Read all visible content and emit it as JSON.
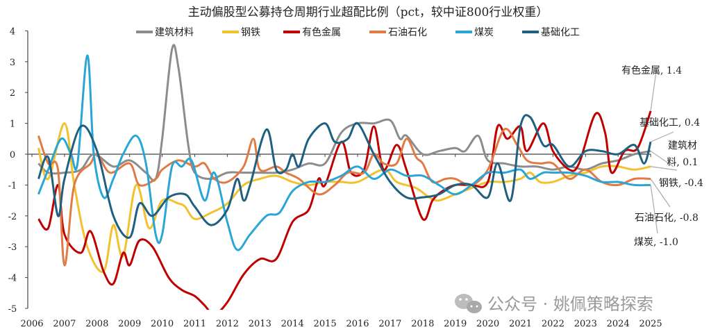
{
  "chart_data": {
    "type": "line",
    "title": "主动偏股型公募持仓周期行业超配比例（pct，较中证800行业权重）",
    "xlabel": "",
    "ylabel": "",
    "xlim": [
      2006,
      2025.2
    ],
    "ylim": [
      -5,
      4
    ],
    "yticks": [
      "4",
      "3",
      "2",
      "1",
      "0",
      "-1",
      "-2",
      "-3",
      "-4",
      "-5"
    ],
    "ytick_values": [
      4,
      3,
      2,
      1,
      0,
      -1,
      -2,
      -3,
      -4,
      -5
    ],
    "xticks": [
      "2006",
      "2007",
      "2008",
      "2009",
      "2010",
      "2011",
      "2012",
      "2013",
      "2014",
      "2015",
      "2016",
      "2017",
      "2018",
      "2019",
      "2020",
      "2021",
      "2022",
      "2023",
      "2024",
      "2025"
    ],
    "grid": false,
    "legend_position": "top",
    "series": [
      {
        "name": "建筑材料",
        "color": "#8c8c8c",
        "label": "建筑材料, 0.1",
        "x": [
          2006.2,
          2006.5,
          2007,
          2007.5,
          2007.9,
          2008.5,
          2009,
          2009.5,
          2009.8,
          2010,
          2010.3,
          2010.5,
          2010.8,
          2011,
          2011.5,
          2012,
          2012.5,
          2013,
          2013.5,
          2014,
          2014.5,
          2015,
          2015.5,
          2016,
          2016.5,
          2017,
          2017.3,
          2017.5,
          2018,
          2018.5,
          2019,
          2019.3,
          2019.7,
          2020,
          2020.5,
          2021,
          2021.5,
          2022,
          2022.5,
          2023,
          2023.5,
          2024,
          2024.5,
          2025
        ],
        "y": [
          -0.3,
          -0.6,
          -0.6,
          -0.5,
          0,
          -0.4,
          -0.2,
          -0.6,
          -0.8,
          0.5,
          3.4,
          2.8,
          0.3,
          -0.6,
          -0.8,
          -0.6,
          -0.6,
          -0.6,
          -0.6,
          -0.5,
          -0.3,
          -0.3,
          0.7,
          1.0,
          1.0,
          1.1,
          0.5,
          0.6,
          0.0,
          0.1,
          0.2,
          0.1,
          0.6,
          -0.2,
          -0.3,
          -0.4,
          -0.4,
          -0.5,
          -0.4,
          -0.5,
          -0.3,
          -0.2,
          0.0,
          0.1
        ]
      },
      {
        "name": "钢铁",
        "color": "#f2c12e",
        "label": "钢铁, -0.4",
        "x": [
          2006.2,
          2006.5,
          2007,
          2007.3,
          2007.7,
          2008.2,
          2008.5,
          2008.8,
          2009.2,
          2009.6,
          2010,
          2010.5,
          2010.7,
          2011,
          2011.5,
          2012,
          2012.5,
          2013,
          2013.5,
          2014,
          2014.5,
          2015,
          2015.5,
          2016,
          2016.8,
          2017.2,
          2017.8,
          2018.2,
          2018.5,
          2019,
          2019.5,
          2020,
          2020.5,
          2021,
          2021.3,
          2021.6,
          2022,
          2022.5,
          2023,
          2023.5,
          2024,
          2024.5,
          2025
        ],
        "y": [
          0.2,
          -0.8,
          1.0,
          -1.0,
          -3.0,
          -3.8,
          -2.3,
          -3.3,
          -1.0,
          -2.4,
          -1.5,
          -1.6,
          -1.7,
          -2.1,
          -1.9,
          -1.6,
          -1.0,
          -0.8,
          -0.7,
          -0.9,
          -1.0,
          -0.9,
          -0.9,
          -0.9,
          -0.5,
          -0.9,
          -1.1,
          -1.4,
          -1.5,
          -1.3,
          -1.1,
          -0.9,
          -0.9,
          -0.8,
          -0.6,
          -0.9,
          -0.9,
          -0.7,
          -0.6,
          -0.4,
          -0.4,
          -0.5,
          -0.4
        ]
      },
      {
        "name": "有色金属",
        "color": "#c00000",
        "label": "有色金属, 1.4",
        "x": [
          2006.2,
          2006.5,
          2006.8,
          2007,
          2007.5,
          2007.8,
          2008.2,
          2008.5,
          2008.8,
          2009,
          2009.3,
          2009.7,
          2010.2,
          2010.6,
          2011,
          2011.3,
          2011.6,
          2012,
          2012.5,
          2013,
          2013.5,
          2014,
          2014.5,
          2014.8,
          2015,
          2015.5,
          2015.8,
          2016.2,
          2016.5,
          2016.8,
          2017.2,
          2017.5,
          2018,
          2018.3,
          2018.6,
          2019,
          2019.5,
          2020,
          2020.3,
          2020.6,
          2021,
          2021.2,
          2021.7,
          2022,
          2022.5,
          2022.8,
          2023.3,
          2023.6,
          2023.8,
          2024.2,
          2024.6,
          2025
        ],
        "y": [
          -2.1,
          -2.4,
          -1.0,
          -2.6,
          -3.2,
          -2.5,
          -3.8,
          -4.2,
          -3.2,
          -3.6,
          -2.8,
          -3.0,
          -4.0,
          -4.4,
          -4.6,
          -4.9,
          -5.2,
          -4.8,
          -3.9,
          -3.4,
          -3.4,
          -2.2,
          -1.8,
          -0.8,
          -1.0,
          0.4,
          -0.6,
          -0.5,
          0.9,
          -0.5,
          0.3,
          -0.5,
          -2.1,
          -1.5,
          -1.2,
          -1.0,
          -1.0,
          -0.9,
          0.9,
          0.5,
          0.9,
          0.1,
          1.0,
          0.1,
          -0.5,
          -0.3,
          1.3,
          0.7,
          -0.6,
          0.1,
          0.2,
          1.4
        ]
      },
      {
        "name": "石油石化",
        "color": "#e07b45",
        "label": "石油石化, -0.8",
        "x": [
          2006.2,
          2006.5,
          2006.8,
          2007,
          2007.3,
          2007.8,
          2008,
          2008.4,
          2009,
          2009.3,
          2009.8,
          2010,
          2010.5,
          2011,
          2011.3,
          2011.6,
          2012,
          2012.5,
          2012.8,
          2013,
          2013.5,
          2013.8,
          2014.2,
          2014.8,
          2015.3,
          2015.7,
          2016.2,
          2016.5,
          2016.8,
          2017.2,
          2017.5,
          2017.8,
          2018,
          2018.3,
          2018.7,
          2019,
          2019.5,
          2020,
          2020.5,
          2020.9,
          2021.2,
          2021.6,
          2022,
          2022.5,
          2023,
          2023.5,
          2024,
          2024.5,
          2025
        ],
        "y": [
          0.6,
          -0.3,
          -0.5,
          -3.6,
          -1.0,
          -0.3,
          0.0,
          -0.6,
          -0.3,
          -1.0,
          -0.8,
          -0.5,
          -0.2,
          -0.4,
          -0.3,
          -0.8,
          -0.9,
          -0.4,
          0.5,
          -0.5,
          -0.4,
          -0.6,
          -0.8,
          -1.3,
          -1.0,
          -0.6,
          -0.6,
          0.0,
          -0.3,
          -0.3,
          0.5,
          -0.1,
          -0.3,
          -0.9,
          -0.8,
          -0.8,
          -1.0,
          -0.5,
          0.8,
          0.3,
          -0.2,
          -0.3,
          -0.3,
          -0.8,
          -0.5,
          -0.9,
          -1.0,
          -0.8,
          -0.8
        ]
      },
      {
        "name": "煤炭",
        "color": "#2aa6d6",
        "label": "煤炭, -1.0",
        "x": [
          2006.2,
          2006.5,
          2006.9,
          2007.2,
          2007.4,
          2007.7,
          2007.9,
          2008.2,
          2008.5,
          2008.8,
          2009.2,
          2009.5,
          2009.8,
          2010,
          2010.3,
          2010.6,
          2010.9,
          2011.3,
          2011.6,
          2012,
          2012.3,
          2012.7,
          2013.2,
          2013.6,
          2014,
          2014.5,
          2015,
          2015.5,
          2016,
          2016.5,
          2017,
          2017.5,
          2018,
          2018.5,
          2019,
          2019.5,
          2020,
          2020.5,
          2021,
          2021.3,
          2021.7,
          2022,
          2022.5,
          2023,
          2023.5,
          2024,
          2024.5,
          2025
        ],
        "y": [
          -1.3,
          -0.5,
          0.5,
          0.0,
          -0.3,
          3.2,
          0.0,
          -1.4,
          -0.8,
          0.0,
          0.6,
          -0.3,
          -2.6,
          -2.6,
          -0.4,
          -0.4,
          -0.2,
          -1.5,
          -0.6,
          -2.2,
          -3.1,
          -2.6,
          -2.0,
          -1.9,
          -1.2,
          -0.9,
          -0.9,
          -0.7,
          -0.4,
          -0.8,
          -0.5,
          -0.7,
          -0.7,
          -1.0,
          -1.3,
          -1.0,
          -0.6,
          -0.6,
          -0.5,
          -0.8,
          -0.6,
          -0.6,
          -0.6,
          -0.7,
          -0.9,
          -0.9,
          -1.0,
          -1.0
        ]
      },
      {
        "name": "基础化工",
        "color": "#1f5f7f",
        "label": "基础化工, 0.4",
        "x": [
          2006.2,
          2006.5,
          2006.8,
          2007,
          2007.5,
          2008,
          2008.5,
          2009,
          2009.3,
          2009.7,
          2010.2,
          2010.7,
          2011,
          2011.5,
          2012,
          2012.3,
          2012.5,
          2012.7,
          2013.2,
          2013.5,
          2013.8,
          2014,
          2014.2,
          2014.5,
          2015,
          2015.3,
          2015.7,
          2016,
          2016.5,
          2017,
          2017.5,
          2018,
          2018.5,
          2019,
          2019.5,
          2020,
          2020.3,
          2020.7,
          2021,
          2021.3,
          2021.7,
          2022,
          2022.5,
          2023,
          2023.5,
          2024,
          2024.5,
          2024.8,
          2025
        ],
        "y": [
          -0.8,
          -0.1,
          -2.0,
          -0.8,
          0.9,
          0.1,
          -2.0,
          -2.7,
          -1.6,
          -2.0,
          -1.4,
          -1.3,
          -1.7,
          -2.3,
          -1.8,
          -0.8,
          -1.5,
          -1.0,
          0.8,
          -0.5,
          -0.5,
          0.0,
          -0.4,
          0.5,
          1.0,
          0.4,
          0.5,
          1.0,
          0.0,
          -0.9,
          -1.4,
          -1.4,
          -1.3,
          -1.0,
          -1.0,
          -1.4,
          -0.3,
          -1.5,
          0.9,
          1.2,
          0.3,
          0.3,
          -0.4,
          0.1,
          0.1,
          0.0,
          0.3,
          -0.3,
          0.4
        ]
      }
    ]
  },
  "watermark": "公众号 · 姚佩策略探索"
}
